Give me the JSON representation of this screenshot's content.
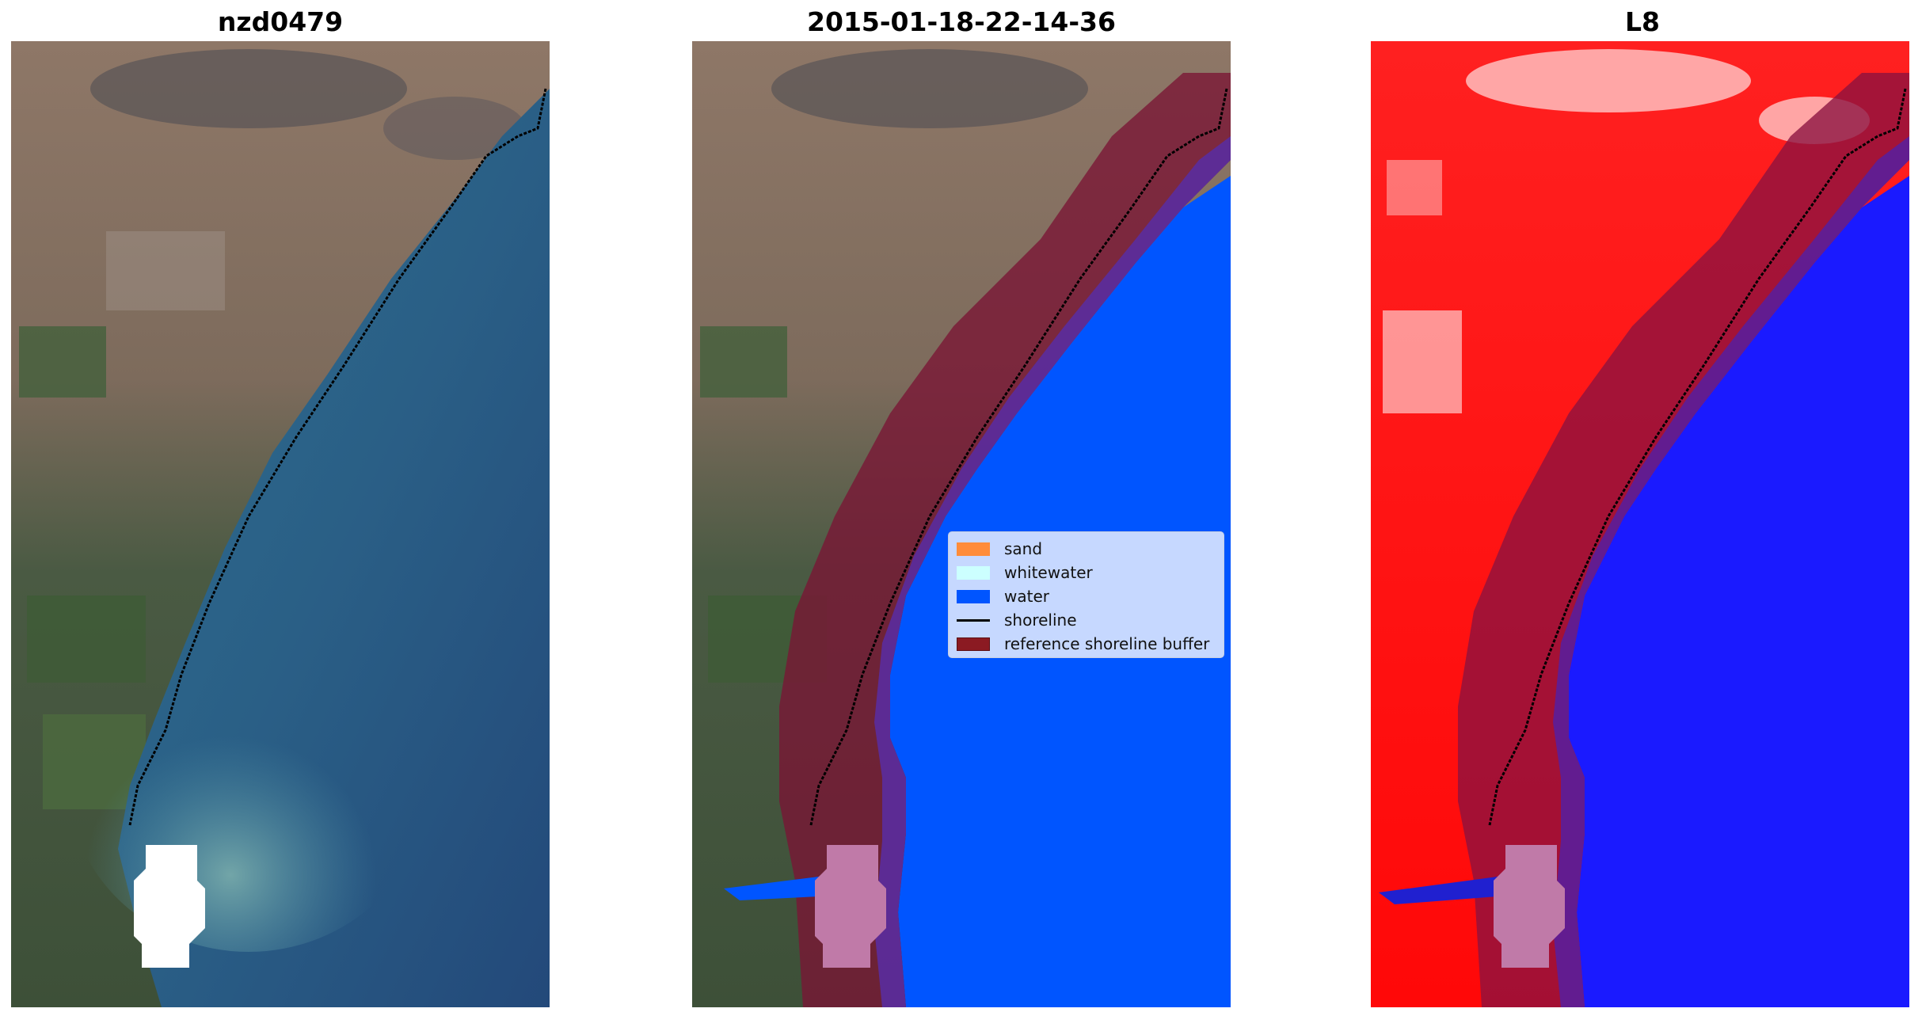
{
  "panels": {
    "left_title": "nzd0479",
    "middle_title": "2015-01-18-22-14-36",
    "right_title": "L8"
  },
  "legend": {
    "items": [
      {
        "label": "sand",
        "color": "#ff8c3a",
        "kind": "patch"
      },
      {
        "label": "whitewater",
        "color": "#ccffff",
        "kind": "patch"
      },
      {
        "label": "water",
        "color": "#0055ff",
        "kind": "patch"
      },
      {
        "label": "shoreline",
        "color": "#000000",
        "kind": "line"
      },
      {
        "label": "reference shoreline buffer",
        "color": "#8b1a22",
        "kind": "patch"
      }
    ]
  },
  "colors": {
    "water_class": "#0055ff",
    "buffer": "#8b1a22",
    "ocean_rgb": "#2e6f8f",
    "land_rgb": "#8a7566",
    "mndwi_land": "#ff1a1a",
    "mndwi_water": "#1a1aff"
  }
}
